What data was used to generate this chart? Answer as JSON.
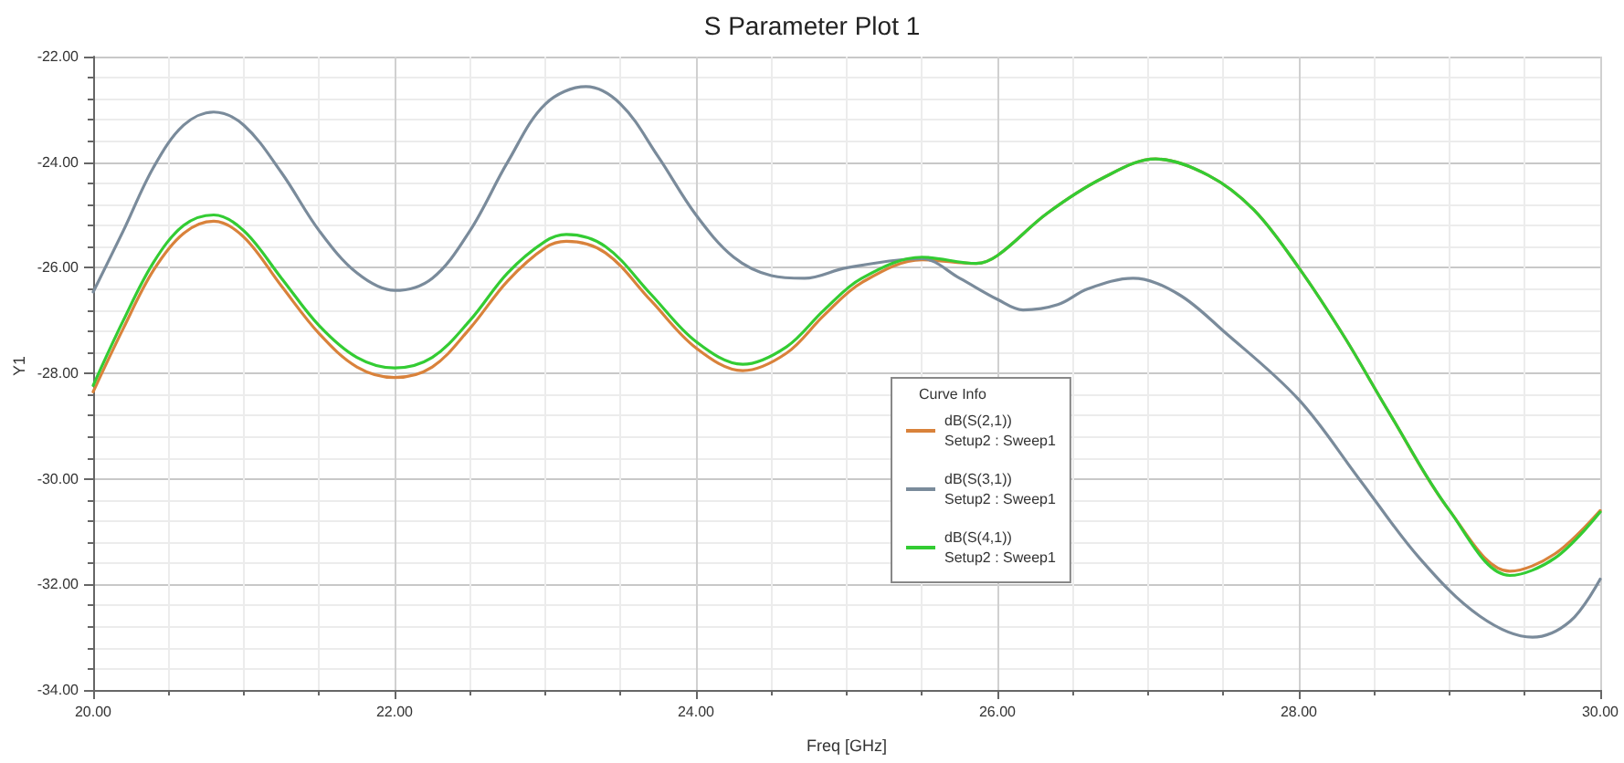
{
  "chart_data": {
    "type": "line",
    "title": "S Parameter Plot 1",
    "xlabel": "Freq [GHz]",
    "ylabel": "Y1",
    "legend_title": "Curve Info",
    "xlim": [
      20,
      30
    ],
    "xticks": [
      {
        "value": 20,
        "label": "20.00"
      },
      {
        "value": 22,
        "label": "22.00"
      },
      {
        "value": 24,
        "label": "24.00"
      },
      {
        "value": 26,
        "label": "26.00"
      },
      {
        "value": 28,
        "label": "28.00"
      },
      {
        "value": 30,
        "label": "30.00"
      }
    ],
    "ylim": [
      -34,
      -22
    ],
    "yticks": [
      {
        "value": -34,
        "label": "-34.00"
      },
      {
        "value": -32,
        "label": "-32.00"
      },
      {
        "value": -30,
        "label": "-30.00"
      },
      {
        "value": -28,
        "label": "-28.00"
      },
      {
        "value": -26,
        "label": "-26.00"
      },
      {
        "value": -24,
        "label": "-24.00"
      },
      {
        "value": -22,
        "label": "-22.00"
      }
    ],
    "grid": true,
    "legend": "bottom",
    "marker": "none",
    "line_style": "solid",
    "series": [
      {
        "name": "dB(S(2,1))\nSetup2 : Sweep1",
        "color": "#d9823b",
        "x": [
          20,
          20.2,
          20.4,
          20.6,
          20.8,
          21.0,
          21.25,
          21.5,
          21.75,
          22,
          22.25,
          22.5,
          22.75,
          23.0,
          23.14,
          23.4,
          23.7,
          24.0,
          24.31,
          24.6,
          24.85,
          25.1,
          25.5,
          25.86,
          26.0,
          26.33,
          26.7,
          27.05,
          27.4,
          27.7,
          28.0,
          28.3,
          28.6,
          29.0,
          29.4,
          29.7,
          30
        ],
        "values": [
          -28.35,
          -27.15,
          -26.05,
          -25.35,
          -25.12,
          -25.42,
          -26.35,
          -27.25,
          -27.88,
          -28.08,
          -27.88,
          -27.15,
          -26.25,
          -25.62,
          -25.5,
          -25.72,
          -26.62,
          -27.52,
          -27.95,
          -27.62,
          -26.9,
          -26.28,
          -25.85,
          -25.92,
          -25.77,
          -24.97,
          -24.3,
          -23.94,
          -24.25,
          -24.9,
          -26.0,
          -27.3,
          -28.75,
          -30.6,
          -31.75,
          -31.42,
          -30.6
        ]
      },
      {
        "name": "dB(S(3,1))\nSetup2 : Sweep1",
        "color": "#7a8b9b",
        "x": [
          20,
          20.2,
          20.4,
          20.6,
          20.8,
          21.0,
          21.25,
          21.5,
          21.75,
          22,
          22.25,
          22.5,
          22.75,
          23.0,
          23.27,
          23.5,
          23.75,
          24.0,
          24.25,
          24.5,
          24.72,
          25.0,
          25.5,
          25.75,
          26.0,
          26.17,
          26.4,
          26.6,
          26.9,
          27.2,
          27.5,
          28.0,
          28.4,
          28.8,
          29.2,
          29.55,
          29.8,
          30
        ],
        "values": [
          -26.46,
          -25.3,
          -24.1,
          -23.3,
          -23.05,
          -23.3,
          -24.2,
          -25.3,
          -26.1,
          -26.43,
          -26.2,
          -25.3,
          -24.0,
          -22.9,
          -22.57,
          -22.9,
          -23.9,
          -25.0,
          -25.8,
          -26.15,
          -26.2,
          -26.0,
          -25.83,
          -26.2,
          -26.6,
          -26.8,
          -26.7,
          -26.4,
          -26.2,
          -26.5,
          -27.2,
          -28.5,
          -30.0,
          -31.5,
          -32.6,
          -33.0,
          -32.7,
          -31.9
        ]
      },
      {
        "name": "dB(S(4,1))\nSetup2 : Sweep1",
        "color": "#33cc33",
        "x": [
          20,
          20.2,
          20.4,
          20.6,
          20.8,
          21.0,
          21.25,
          21.5,
          21.75,
          22,
          22.25,
          22.5,
          22.75,
          23.0,
          23.14,
          23.4,
          23.7,
          24.0,
          24.31,
          24.6,
          24.85,
          25.1,
          25.5,
          25.86,
          26.0,
          26.33,
          26.7,
          27.05,
          27.4,
          27.7,
          28.0,
          28.3,
          28.6,
          29.0,
          29.4,
          29.7,
          30
        ],
        "values": [
          -28.23,
          -27.0,
          -25.9,
          -25.2,
          -25.0,
          -25.3,
          -26.2,
          -27.1,
          -27.7,
          -27.9,
          -27.7,
          -27.0,
          -26.1,
          -25.5,
          -25.37,
          -25.6,
          -26.5,
          -27.4,
          -27.83,
          -27.5,
          -26.8,
          -26.2,
          -25.8,
          -25.92,
          -25.77,
          -24.97,
          -24.3,
          -23.94,
          -24.25,
          -24.9,
          -26.0,
          -27.3,
          -28.75,
          -30.6,
          -31.83,
          -31.5,
          -30.63
        ]
      }
    ]
  }
}
